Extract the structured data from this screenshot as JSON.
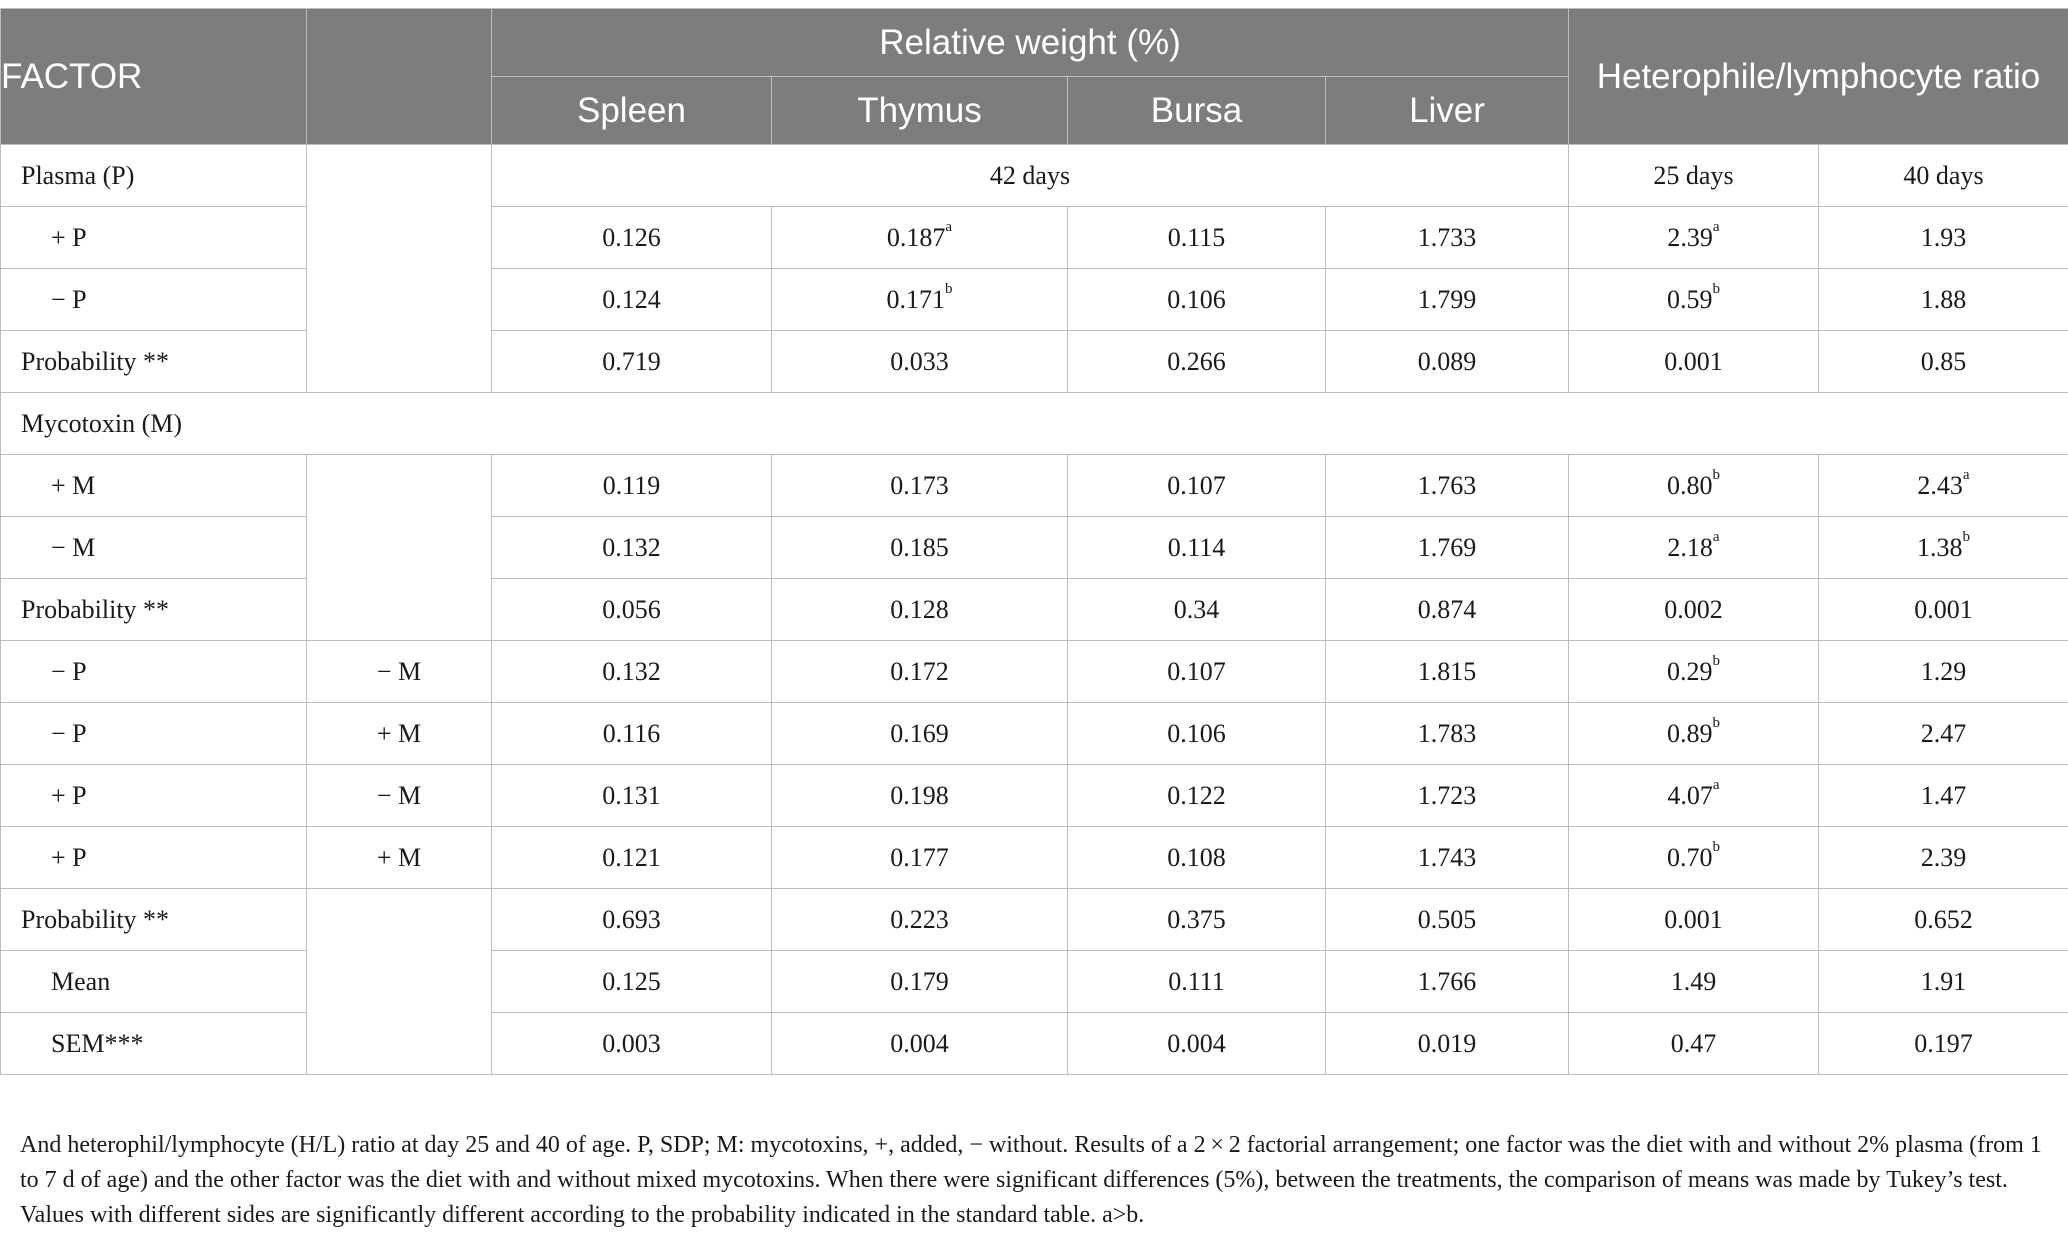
{
  "header": {
    "factor": "FACTOR",
    "relative_weight": "Relative weight (%)",
    "hl_ratio": "Heterophile/lymphocyte ratio",
    "organs": [
      "Spleen",
      "Thymus",
      "Bursa",
      "Liver"
    ]
  },
  "plasma_section": {
    "label": "Plasma (P)",
    "period_42": "42 days",
    "period_25": "25 days",
    "period_40": "40 days"
  },
  "rows_plasma": [
    {
      "label": "+ P",
      "sub": "",
      "spleen": "0.126",
      "thymus": "0.187",
      "thymus_sup": "a",
      "bursa": "0.115",
      "liver": "1.733",
      "d25": "2.39",
      "d25_sup": "a",
      "d40": "1.93",
      "d40_sup": ""
    },
    {
      "label": "− P",
      "sub": "",
      "spleen": "0.124",
      "thymus": "0.171",
      "thymus_sup": "b",
      "bursa": "0.106",
      "liver": "1.799",
      "d25": "0.59",
      "d25_sup": "b",
      "d40": "1.88",
      "d40_sup": ""
    },
    {
      "label": "Probability **",
      "sub": "",
      "spleen": "0.719",
      "thymus": "0.033",
      "thymus_sup": "",
      "bursa": "0.266",
      "liver": "0.089",
      "d25": "0.001",
      "d25_sup": "",
      "d40": "0.85",
      "d40_sup": ""
    }
  ],
  "mycotoxin_section": {
    "label": "Mycotoxin (M)"
  },
  "rows_mycotoxin": [
    {
      "label": "+ M",
      "sub": "",
      "spleen": "0.119",
      "thymus": "0.173",
      "thymus_sup": "",
      "bursa": "0.107",
      "liver": "1.763",
      "d25": "0.80",
      "d25_sup": "b",
      "d40": "2.43",
      "d40_sup": "a"
    },
    {
      "label": "− M",
      "sub": "",
      "spleen": "0.132",
      "thymus": "0.185",
      "thymus_sup": "",
      "bursa": "0.114",
      "liver": "1.769",
      "d25": "2.18",
      "d25_sup": "a",
      "d40": "1.38",
      "d40_sup": "b"
    },
    {
      "label": "Probability **",
      "sub": "",
      "spleen": "0.056",
      "thymus": "0.128",
      "thymus_sup": "",
      "bursa": "0.34",
      "liver": "0.874",
      "d25": "0.002",
      "d25_sup": "",
      "d40": "0.001",
      "d40_sup": ""
    }
  ],
  "rows_interaction": [
    {
      "label": "− P",
      "sub": "− M",
      "spleen": "0.132",
      "thymus": "0.172",
      "thymus_sup": "",
      "bursa": "0.107",
      "liver": "1.815",
      "d25": "0.29",
      "d25_sup": "b",
      "d40": "1.29",
      "d40_sup": ""
    },
    {
      "label": "− P",
      "sub": "+ M",
      "spleen": "0.116",
      "thymus": "0.169",
      "thymus_sup": "",
      "bursa": "0.106",
      "liver": "1.783",
      "d25": "0.89",
      "d25_sup": "b",
      "d40": "2.47",
      "d40_sup": ""
    },
    {
      "label": "+ P",
      "sub": "− M",
      "spleen": "0.131",
      "thymus": "0.198",
      "thymus_sup": "",
      "bursa": "0.122",
      "liver": "1.723",
      "d25": "4.07",
      "d25_sup": "a",
      "d40": "1.47",
      "d40_sup": ""
    },
    {
      "label": "+ P",
      "sub": "+ M",
      "spleen": "0.121",
      "thymus": "0.177",
      "thymus_sup": "",
      "bursa": "0.108",
      "liver": "1.743",
      "d25": "0.70",
      "d25_sup": "b",
      "d40": "2.39",
      "d40_sup": ""
    }
  ],
  "rows_summary": [
    {
      "label": "Probability **",
      "sub": "",
      "spleen": "0.693",
      "thymus": "0.223",
      "thymus_sup": "",
      "bursa": "0.375",
      "liver": "0.505",
      "d25": "0.001",
      "d25_sup": "",
      "d40": "0.652",
      "d40_sup": ""
    },
    {
      "label": "Mean",
      "sub": "",
      "spleen": "0.125",
      "thymus": "0.179",
      "thymus_sup": "",
      "bursa": "0.111",
      "liver": "1.766",
      "d25": "1.49",
      "d25_sup": "",
      "d40": "1.91",
      "d40_sup": ""
    },
    {
      "label": "SEM***",
      "sub": "",
      "spleen": "0.003",
      "thymus": "0.004",
      "thymus_sup": "",
      "bursa": "0.004",
      "liver": "0.019",
      "d25": "0.47",
      "d25_sup": "",
      "d40": "0.197",
      "d40_sup": ""
    }
  ],
  "caption": "And heterophil/lymphocyte (H/L) ratio at day 25 and 40 of age. P, SDP; M: mycotoxins, +, added, − without. Results of a 2 × 2 factorial arrangement; one factor was the diet with and without 2% plasma (from 1 to 7 d of age) and the other factor was the diet with and without mixed mycotoxins. When there were significant differences (5%), between the treatments, the comparison of means was made by Tukey’s test. Values with different sides are significantly different according to the probability indicated in the standard table. a>b."
}
